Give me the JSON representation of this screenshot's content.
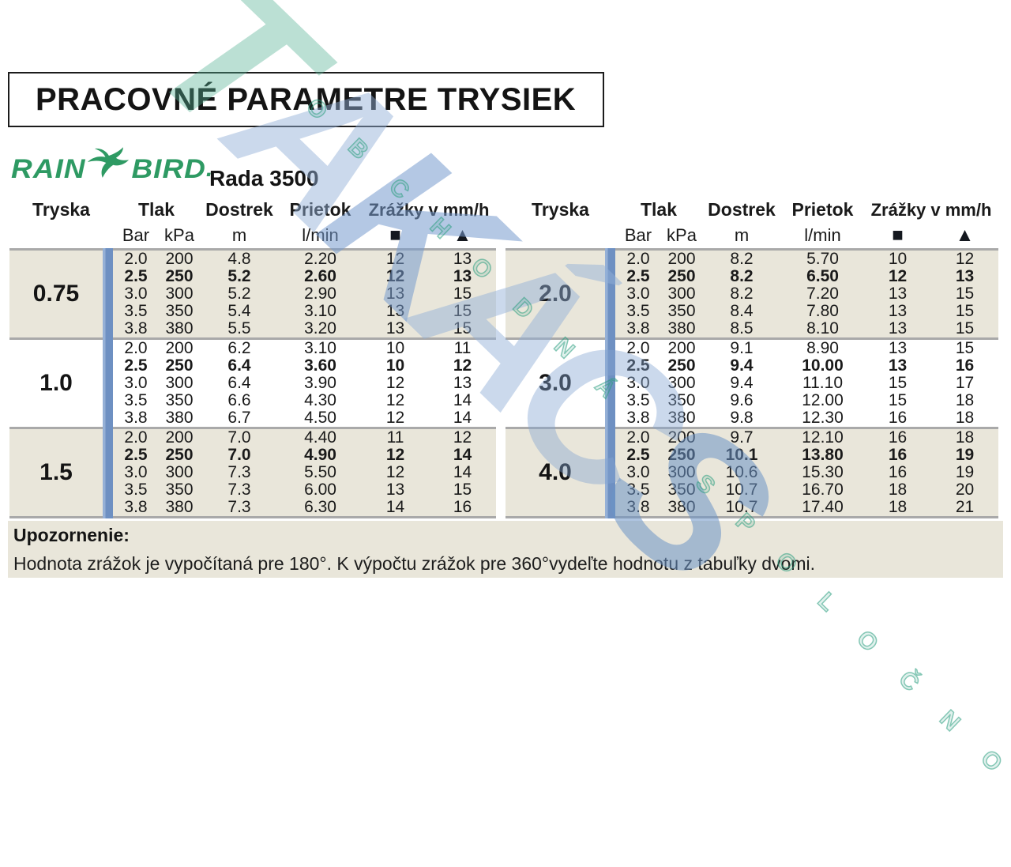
{
  "title": "PRACOVNÉ PARAMETRE TRYSIEK",
  "brand": {
    "word_left": "RAIN",
    "word_right": "BIRD",
    "suffix": ".",
    "logo_color": "#2e9a63"
  },
  "series_label": "Rada 3500",
  "table_headers": {
    "tryska": "Tryska",
    "tlak": "Tlak",
    "dostrek": "Dostrek",
    "prietok": "Prietok",
    "zrazky": "Zrážky v mm/h",
    "bar": "Bar",
    "kpa": "kPa",
    "m": "m",
    "lmin": "l/min",
    "square_symbol": "■",
    "triangle_symbol": "▲"
  },
  "bold_row_index": 1,
  "tables": [
    {
      "sections": [
        {
          "tryska": "0.75",
          "rows": [
            [
              "2.0",
              "200",
              "4.8",
              "2.20",
              "12",
              "13"
            ],
            [
              "2.5",
              "250",
              "5.2",
              "2.60",
              "12",
              "13"
            ],
            [
              "3.0",
              "300",
              "5.2",
              "2.90",
              "13",
              "15"
            ],
            [
              "3.5",
              "350",
              "5.4",
              "3.10",
              "13",
              "15"
            ],
            [
              "3.8",
              "380",
              "5.5",
              "3.20",
              "13",
              "15"
            ]
          ]
        },
        {
          "tryska": "1.0",
          "rows": [
            [
              "2.0",
              "200",
              "6.2",
              "3.10",
              "10",
              "11"
            ],
            [
              "2.5",
              "250",
              "6.4",
              "3.60",
              "10",
              "12"
            ],
            [
              "3.0",
              "300",
              "6.4",
              "3.90",
              "12",
              "13"
            ],
            [
              "3.5",
              "350",
              "6.6",
              "4.30",
              "12",
              "14"
            ],
            [
              "3.8",
              "380",
              "6.7",
              "4.50",
              "12",
              "14"
            ]
          ]
        },
        {
          "tryska": "1.5",
          "rows": [
            [
              "2.0",
              "200",
              "7.0",
              "4.40",
              "11",
              "12"
            ],
            [
              "2.5",
              "250",
              "7.0",
              "4.90",
              "12",
              "14"
            ],
            [
              "3.0",
              "300",
              "7.3",
              "5.50",
              "12",
              "14"
            ],
            [
              "3.5",
              "350",
              "7.3",
              "6.00",
              "13",
              "15"
            ],
            [
              "3.8",
              "380",
              "7.3",
              "6.30",
              "14",
              "16"
            ]
          ]
        }
      ]
    },
    {
      "sections": [
        {
          "tryska": "2.0",
          "rows": [
            [
              "2.0",
              "200",
              "8.2",
              "5.70",
              "10",
              "12"
            ],
            [
              "2.5",
              "250",
              "8.2",
              "6.50",
              "12",
              "13"
            ],
            [
              "3.0",
              "300",
              "8.2",
              "7.20",
              "13",
              "15"
            ],
            [
              "3.5",
              "350",
              "8.4",
              "7.80",
              "13",
              "15"
            ],
            [
              "3.8",
              "380",
              "8.5",
              "8.10",
              "13",
              "15"
            ]
          ]
        },
        {
          "tryska": "3.0",
          "rows": [
            [
              "2.0",
              "200",
              "9.1",
              "8.90",
              "13",
              "15"
            ],
            [
              "2.5",
              "250",
              "9.4",
              "10.00",
              "13",
              "16"
            ],
            [
              "3.0",
              "300",
              "9.4",
              "11.10",
              "15",
              "17"
            ],
            [
              "3.5",
              "350",
              "9.6",
              "12.00",
              "15",
              "18"
            ],
            [
              "3.8",
              "380",
              "9.8",
              "12.30",
              "16",
              "18"
            ]
          ]
        },
        {
          "tryska": "4.0",
          "rows": [
            [
              "2.0",
              "200",
              "9.7",
              "12.10",
              "16",
              "18"
            ],
            [
              "2.5",
              "250",
              "10.1",
              "13.80",
              "16",
              "19"
            ],
            [
              "3.0",
              "300",
              "10.6",
              "15.30",
              "16",
              "19"
            ],
            [
              "3.5",
              "350",
              "10.7",
              "16.70",
              "18",
              "20"
            ],
            [
              "3.8",
              "380",
              "10.7",
              "17.40",
              "18",
              "21"
            ]
          ]
        }
      ]
    }
  ],
  "note": {
    "title": "Upozornenie:",
    "body": "Hodnota zrážok je vypočítaná pre 180°. K výpočtu zrážok pre 360°vydeľte hodnotu z tabuľky dvomi."
  },
  "watermark": {
    "big": "TAKÁCS",
    "small": "OBCHODNÁ SPOLOČNOSŤ"
  },
  "colors": {
    "row_beige": "#e9e6da",
    "separator_gray": "#a9a9a9",
    "bar_blue": "#6e90c2",
    "logo_green": "#2e9a63",
    "watermark_teal": "#54b294",
    "watermark_blue": "#769bcd"
  }
}
